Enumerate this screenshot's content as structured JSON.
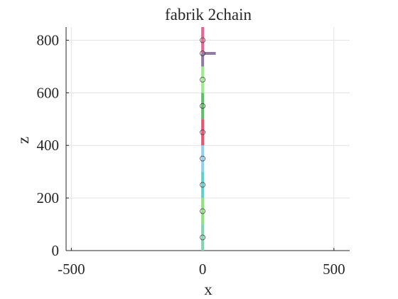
{
  "chart_data": {
    "type": "line",
    "title": "fabrik 2chain",
    "xlabel": "x",
    "ylabel": "z",
    "xlim": [
      -520,
      560
    ],
    "ylim": [
      0,
      850
    ],
    "xticks": [
      -500,
      0,
      500
    ],
    "yticks": [
      0,
      200,
      400,
      600,
      800
    ],
    "grid": true,
    "legend": "none",
    "segments": [
      {
        "x": [
          0,
          0
        ],
        "z": [
          0,
          100
        ],
        "color": "#7fd6b0"
      },
      {
        "x": [
          0,
          0
        ],
        "z": [
          100,
          200
        ],
        "color": "#8fe37f"
      },
      {
        "x": [
          0,
          0
        ],
        "z": [
          200,
          300
        ],
        "color": "#5fd0d0"
      },
      {
        "x": [
          0,
          0
        ],
        "z": [
          300,
          400
        ],
        "color": "#8fd0f5"
      },
      {
        "x": [
          0,
          0
        ],
        "z": [
          400,
          500
        ],
        "color": "#f5506e"
      },
      {
        "x": [
          0,
          0
        ],
        "z": [
          500,
          600
        ],
        "color": "#5cc166"
      },
      {
        "x": [
          0,
          0
        ],
        "z": [
          600,
          700
        ],
        "color": "#9deb8f"
      },
      {
        "x": [
          0,
          0
        ],
        "z": [
          700,
          750
        ],
        "color": "#927aa6"
      },
      {
        "x": [
          0,
          0
        ],
        "z": [
          750,
          850
        ],
        "color": "#f06292"
      },
      {
        "x": [
          0,
          50
        ],
        "z": [
          750,
          750
        ],
        "color": "#927aa6"
      }
    ],
    "joints": {
      "x": [
        0,
        0,
        0,
        0,
        0,
        0,
        0,
        0
      ],
      "z": [
        50,
        150,
        250,
        350,
        450,
        550,
        650,
        750
      ]
    },
    "top_joint": {
      "x": 0,
      "z": 800
    }
  }
}
